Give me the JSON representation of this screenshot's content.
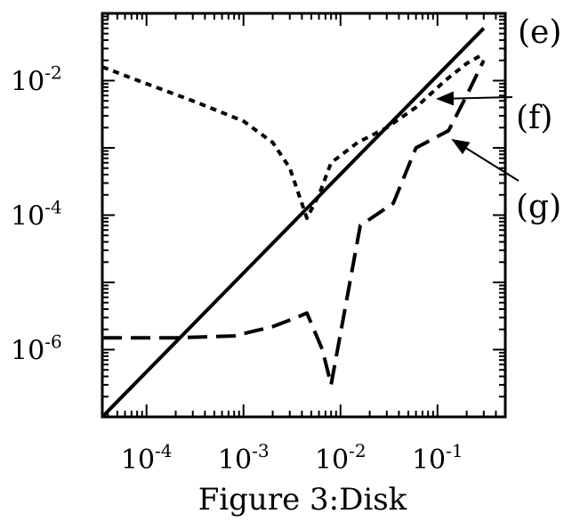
{
  "chart_data": {
    "type": "line",
    "caption": "Figure 3:Disk",
    "xscale": "log",
    "yscale": "log",
    "xlim": [
      3.5e-05,
      0.5
    ],
    "ylim": [
      1e-07,
      0.1
    ],
    "grid": false,
    "x_ticks": [
      {
        "value": 0.0001,
        "base": "10",
        "exp": "-4"
      },
      {
        "value": 0.001,
        "base": "10",
        "exp": "-3"
      },
      {
        "value": 0.01,
        "base": "10",
        "exp": "-2"
      },
      {
        "value": 0.1,
        "base": "10",
        "exp": "-1"
      }
    ],
    "y_ticks": [
      {
        "value": 1e-06,
        "base": "10",
        "exp": "-6"
      },
      {
        "value": 0.0001,
        "base": "10",
        "exp": "-4"
      },
      {
        "value": 0.01,
        "base": "10",
        "exp": "-2"
      }
    ],
    "series": [
      {
        "name": "(e)",
        "style": "solid",
        "color": "#000000",
        "x": [
          3.5e-05,
          0.3
        ],
        "y": [
          1e-07,
          0.06
        ]
      },
      {
        "name": "(f)",
        "style": "dotted",
        "color": "#000000",
        "x": [
          3.5e-05,
          0.0001,
          0.0003,
          0.001,
          0.002,
          0.003,
          0.0045,
          0.006,
          0.008,
          0.015,
          0.03,
          0.06,
          0.12,
          0.2,
          0.3
        ],
        "y": [
          0.016,
          0.009,
          0.005,
          0.0025,
          0.0012,
          0.0005,
          9e-05,
          0.0002,
          0.0006,
          0.0012,
          0.002,
          0.004,
          0.01,
          0.018,
          0.025
        ]
      },
      {
        "name": "(g)",
        "style": "dashed",
        "color": "#000000",
        "x": [
          3.5e-05,
          0.0002,
          0.0008,
          0.002,
          0.0035,
          0.0045,
          0.0065,
          0.008,
          0.016,
          0.035,
          0.06,
          0.13,
          0.2,
          0.3
        ],
        "y": [
          1.5e-06,
          1.5e-06,
          1.6e-06,
          2.2e-06,
          3e-06,
          3.5e-06,
          1e-06,
          3e-07,
          7e-05,
          0.00015,
          0.001,
          0.0018,
          0.006,
          0.02
        ]
      }
    ],
    "annotations": [
      {
        "label": "(e)"
      },
      {
        "label": "(f)"
      },
      {
        "label": "(g)"
      }
    ]
  }
}
